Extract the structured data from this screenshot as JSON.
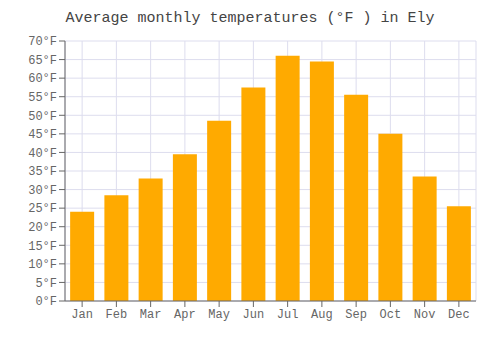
{
  "chart_data": {
    "type": "bar",
    "title": "Average monthly temperatures (°F ) in Ely",
    "categories": [
      "Jan",
      "Feb",
      "Mar",
      "Apr",
      "May",
      "Jun",
      "Jul",
      "Aug",
      "Sep",
      "Oct",
      "Nov",
      "Dec"
    ],
    "values": [
      24,
      28.5,
      33,
      39.5,
      48.5,
      57.5,
      66,
      64.5,
      55.5,
      45,
      33.5,
      25.5
    ],
    "color": "#FFAA00",
    "ylim": [
      0,
      70
    ],
    "yticks": [
      {
        "value": 0,
        "label": "0°F"
      },
      {
        "value": 5,
        "label": "5°F"
      },
      {
        "value": 10,
        "label": "10°F"
      },
      {
        "value": 15,
        "label": "15°F"
      },
      {
        "value": 20,
        "label": "20°F"
      },
      {
        "value": 25,
        "label": "25°F"
      },
      {
        "value": 30,
        "label": "30°F"
      },
      {
        "value": 35,
        "label": "35°F"
      },
      {
        "value": 40,
        "label": "40°F"
      },
      {
        "value": 45,
        "label": "45°F"
      },
      {
        "value": 50,
        "label": "50°F"
      },
      {
        "value": 55,
        "label": "55°F"
      },
      {
        "value": 60,
        "label": "60°F"
      },
      {
        "value": 65,
        "label": "65°F"
      },
      {
        "value": 70,
        "label": "70°F"
      }
    ],
    "grid": true
  }
}
